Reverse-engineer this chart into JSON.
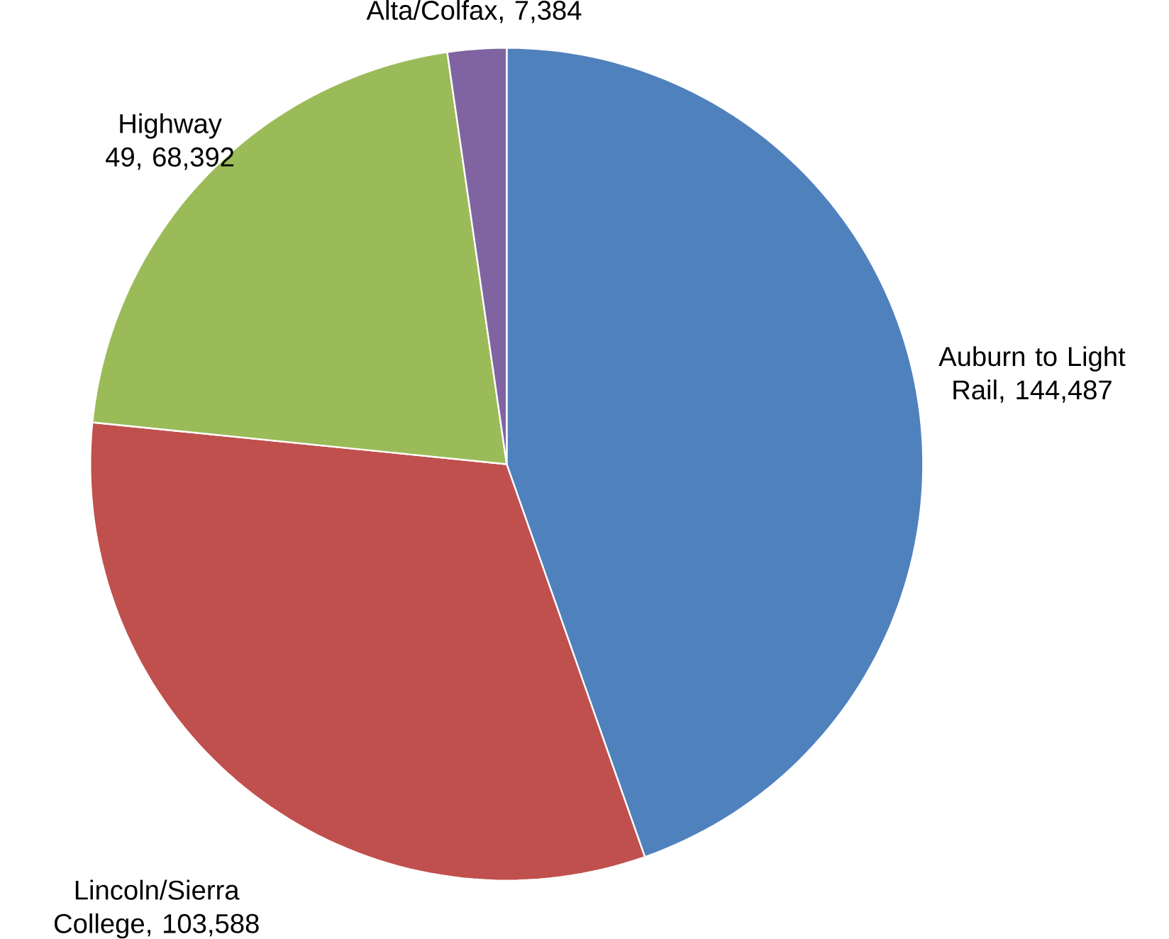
{
  "chart_data": {
    "type": "pie",
    "categories": [
      "Auburn to Light Rail",
      "Lincoln/Sierra College",
      "Highway 49",
      "Alta/Colfax"
    ],
    "values": [
      144487,
      103588,
      68392,
      7384
    ],
    "value_labels": [
      ", 144,487",
      ", 103,588",
      ", 68,392",
      ", 7,384"
    ],
    "colors": [
      "#4f81bd",
      "#c0504d",
      "#9bbb59",
      "#8064a2"
    ]
  }
}
